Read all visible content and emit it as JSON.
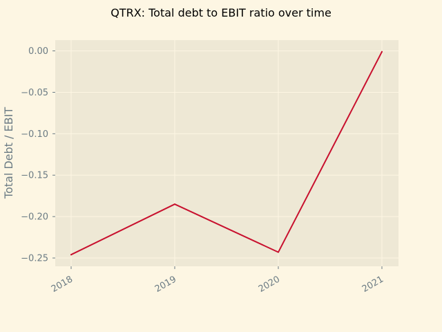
{
  "chart_data": {
    "type": "line",
    "title": "QTRX: Total debt to EBIT ratio over time",
    "xlabel": "",
    "ylabel": "Total Debt / EBIT",
    "x": [
      "2018",
      "2019",
      "2020",
      "2021"
    ],
    "series": [
      {
        "values": [
          -0.246,
          -0.185,
          -0.243,
          -0.001
        ]
      }
    ],
    "ylim": [
      -0.26,
      0.013
    ],
    "yticks": [
      0.0,
      -0.05,
      -0.1,
      -0.15,
      -0.2,
      -0.25
    ],
    "ytick_labels": [
      "0.00",
      "−0.05",
      "−0.10",
      "−0.15",
      "−0.20",
      "−0.25"
    ],
    "grid": true,
    "colors": {
      "page_background": "#fdf6e3",
      "plot_background": "#eee8d5",
      "line": "#c8102e",
      "grid": "#fdf6e3",
      "text": "#6b7b84"
    }
  }
}
